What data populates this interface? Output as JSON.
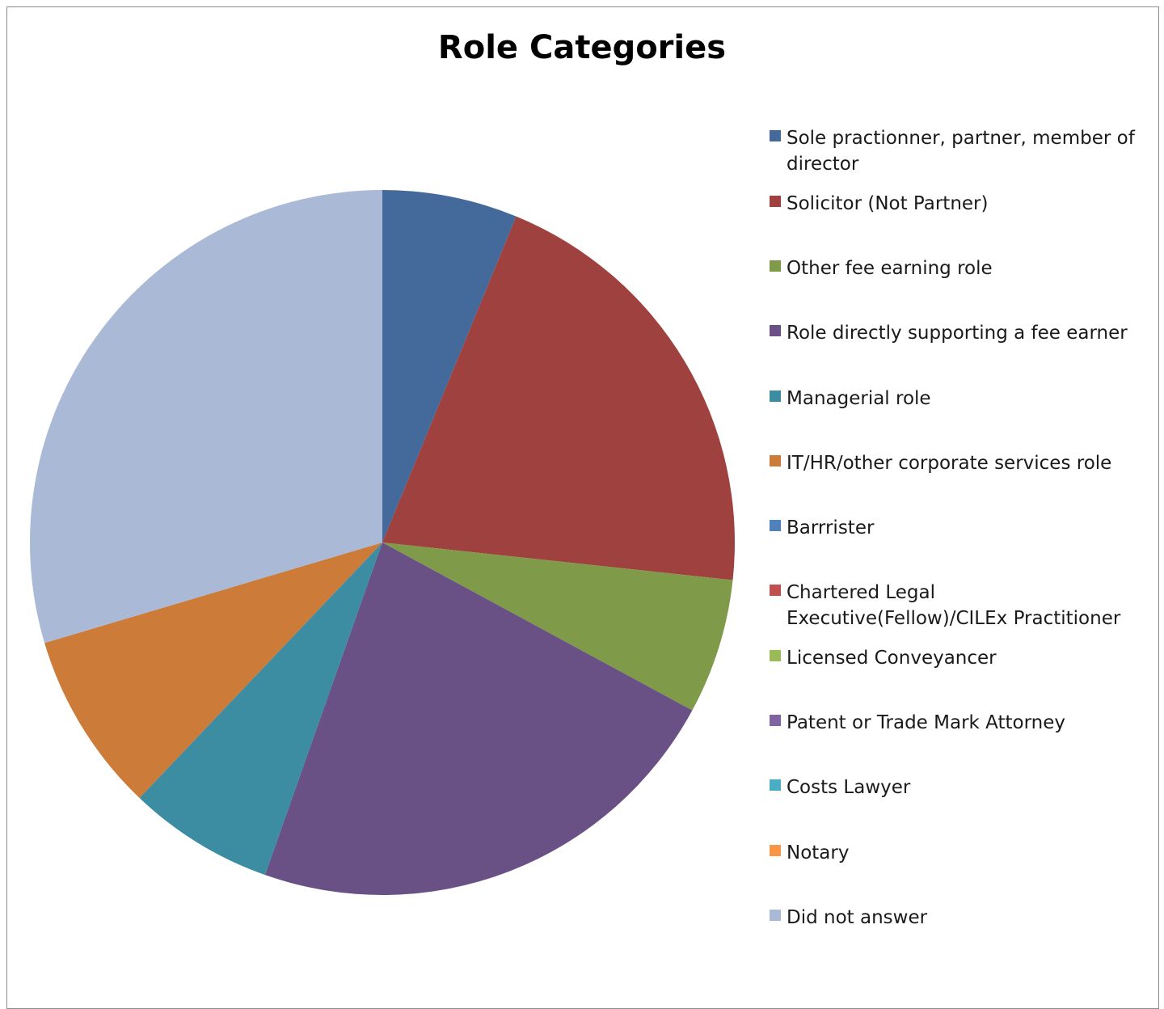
{
  "chart_data": {
    "type": "pie",
    "title": "Role Categories",
    "legend_position": "right",
    "start_angle_deg": 0,
    "direction": "clockwise",
    "slices": [
      {
        "label": "Sole practionner, partner, member of director",
        "value": 6.2,
        "color": "#44699b"
      },
      {
        "label": "Solicitor (Not Partner)",
        "value": 20.5,
        "color": "#9e413f"
      },
      {
        "label": "Other fee earning role",
        "value": 6.2,
        "color": "#7f9a48"
      },
      {
        "label": "Role directly supporting a fee earner",
        "value": 22.5,
        "color": "#695185"
      },
      {
        "label": "Managerial role",
        "value": 6.7,
        "color": "#3c8ca2"
      },
      {
        "label": "IT/HR/other corporate services role",
        "value": 8.3,
        "color": "#cc7b38"
      },
      {
        "label": "Barrrister",
        "value": 0,
        "color": "#4f81bd"
      },
      {
        "label": "Chartered Legal Executive(Fellow)/CILEx Practitioner",
        "value": 0,
        "color": "#c0504d"
      },
      {
        "label": "Licensed Conveyancer",
        "value": 0,
        "color": "#9bbb59"
      },
      {
        "label": "Patent or Trade Mark Attorney",
        "value": 0,
        "color": "#8064a2"
      },
      {
        "label": "Costs Lawyer",
        "value": 0,
        "color": "#4bacc6"
      },
      {
        "label": "Notary",
        "value": 0,
        "color": "#f79646"
      },
      {
        "label": "Did not answer",
        "value": 29.6,
        "color": "#aab9d6"
      }
    ]
  }
}
